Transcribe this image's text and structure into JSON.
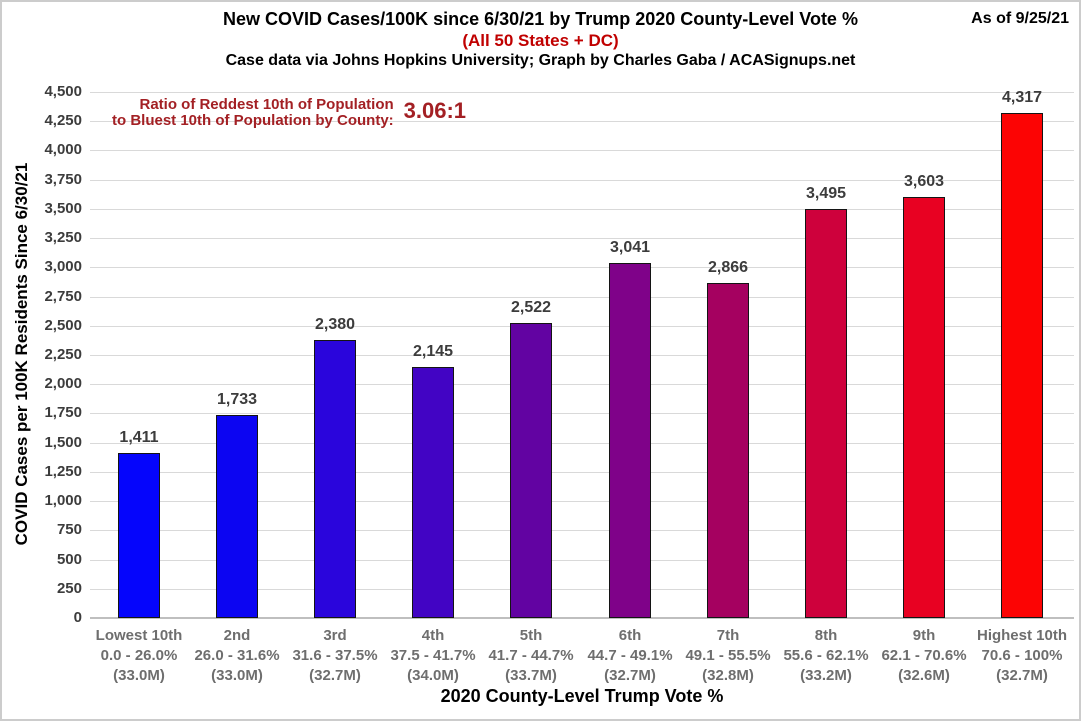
{
  "header": {
    "title": "New COVID Cases/100K since 6/30/21 by Trump 2020 County-Level Vote %",
    "subtitle": "(All 50 States + DC)",
    "credit": "Case data via Johns Hopkins University; Graph by Charles Gaba / ACASignups.net",
    "as_of": "As of 9/25/21"
  },
  "annotation": {
    "line1": "Ratio of Reddest 10th of Population",
    "line2": "to Bluest 10th of Population by County:",
    "ratio": "3.06:1"
  },
  "colors": {
    "subtitle_red": "#C00000",
    "annotation_red": "#A32024",
    "value_label_gray": "#3C3C3C",
    "category_gray": "#6E6E6E",
    "gridline": "#D9D9D9",
    "axis_line": "#BFBFBF",
    "bar_outline": "#141414"
  },
  "chart_data": {
    "type": "bar",
    "title": "New COVID Cases/100K since 6/30/21 by Trump 2020 County-Level Vote %",
    "xlabel": "2020 County-Level Trump Vote %",
    "ylabel": "COVID Cases per 100K Residents Since 6/30/21",
    "ylim": [
      0,
      4500
    ],
    "ytick_step": 250,
    "grid": true,
    "legend": "none",
    "categories": [
      {
        "decile": "Lowest 10th",
        "vote_range": "0.0 - 26.0%",
        "population": "(33.0M)"
      },
      {
        "decile": "2nd",
        "vote_range": "26.0 - 31.6%",
        "population": "(33.0M)"
      },
      {
        "decile": "3rd",
        "vote_range": "31.6 - 37.5%",
        "population": "(32.7M)"
      },
      {
        "decile": "4th",
        "vote_range": "37.5 - 41.7%",
        "population": "(34.0M)"
      },
      {
        "decile": "5th",
        "vote_range": "41.7 - 44.7%",
        "population": "(33.7M)"
      },
      {
        "decile": "6th",
        "vote_range": "44.7 - 49.1%",
        "population": "(32.7M)"
      },
      {
        "decile": "7th",
        "vote_range": "49.1 - 55.5%",
        "population": "(32.8M)"
      },
      {
        "decile": "8th",
        "vote_range": "55.6 - 62.1%",
        "population": "(33.2M)"
      },
      {
        "decile": "9th",
        "vote_range": "62.1 - 70.6%",
        "population": "(32.6M)"
      },
      {
        "decile": "Highest 10th",
        "vote_range": "70.6 - 100%",
        "population": "(32.7M)"
      }
    ],
    "values": [
      1411,
      1733,
      2380,
      2145,
      2522,
      3041,
      2866,
      3495,
      3603,
      4317
    ],
    "value_labels": [
      "1,411",
      "1,733",
      "2,380",
      "2,145",
      "2,522",
      "3,041",
      "2,866",
      "3,495",
      "3,603",
      "4,317"
    ],
    "bar_colors": [
      "#0505FC",
      "#0C05F2",
      "#2A05DC",
      "#4204C4",
      "#6203A2",
      "#7F0289",
      "#A50160",
      "#CE013C",
      "#E80122",
      "#FC0404"
    ]
  }
}
